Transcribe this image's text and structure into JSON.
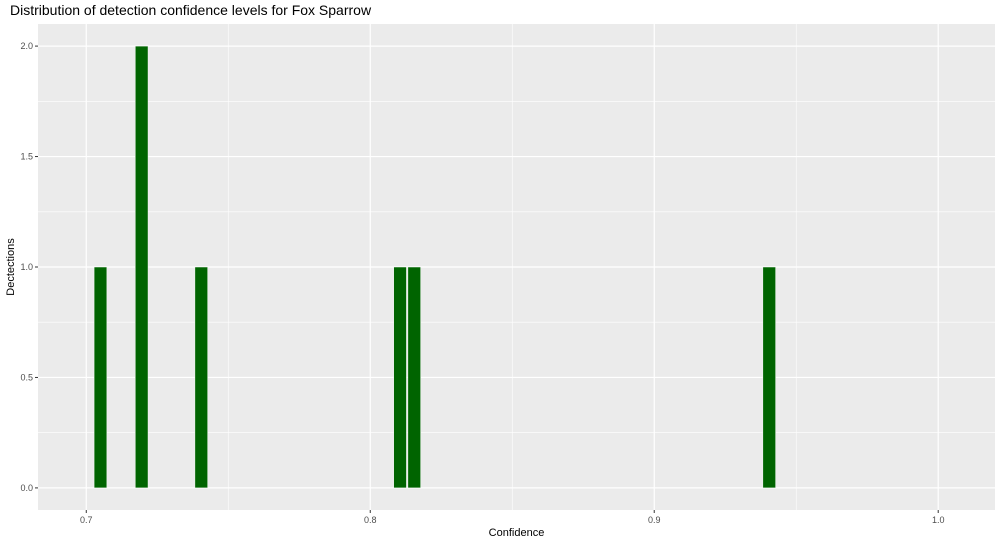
{
  "chart_data": {
    "type": "bar",
    "title": "Distribution of detection confidence levels for Fox Sparrow",
    "xlabel": "Confidence",
    "ylabel": "Dectections",
    "xlim": [
      0.683,
      1.02
    ],
    "ylim": [
      -0.1,
      2.1
    ],
    "x_ticks": [
      0.7,
      0.8,
      0.9,
      1.0
    ],
    "x_tick_labels": [
      "0.7",
      "0.8",
      "0.9",
      "1.0"
    ],
    "y_ticks": [
      0.0,
      0.5,
      1.0,
      1.5,
      2.0
    ],
    "y_tick_labels": [
      "0.0",
      "0.5",
      "1.0",
      "1.5",
      "2.0"
    ],
    "bin_width": 0.0045,
    "bars": [
      {
        "x": 0.705,
        "value": 1
      },
      {
        "x": 0.7195,
        "value": 2
      },
      {
        "x": 0.7405,
        "value": 1
      },
      {
        "x": 0.8105,
        "value": 1
      },
      {
        "x": 0.8155,
        "value": 1
      },
      {
        "x": 0.9405,
        "value": 1
      }
    ],
    "grid": true,
    "bar_color": "#006400",
    "panel_color": "#EBEBEB"
  }
}
